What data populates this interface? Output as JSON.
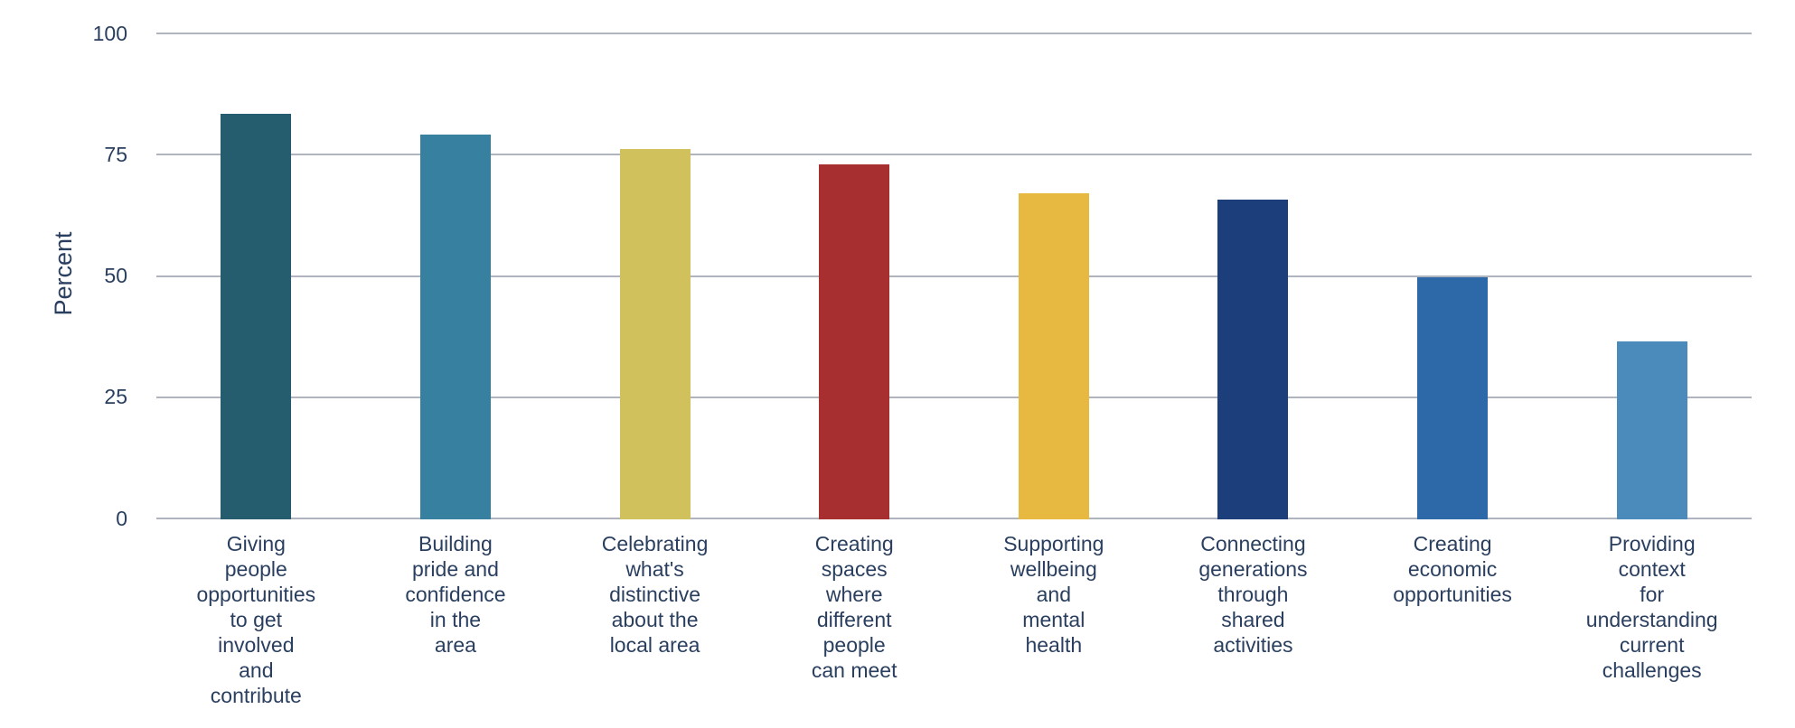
{
  "chart_data": {
    "type": "bar",
    "title": "",
    "xlabel": "",
    "ylabel": "Percent",
    "ylim": [
      0,
      100
    ],
    "yticks": [
      0,
      25,
      50,
      75,
      100
    ],
    "grid": true,
    "legend": false,
    "background_color": "#ffffff",
    "text_color": "#2a3f5f",
    "grid_color": "#b0b4bf",
    "categories": [
      "Giving\npeople\nopportunities\nto get\ninvolved\nand\ncontribute",
      "Building\npride and\nconfidence\nin the\narea",
      "Celebrating\nwhat's\ndistinctive\nabout the\nlocal area",
      "Creating\nspaces\nwhere\ndifferent\npeople\ncan meet",
      "Supporting\nwellbeing\nand\nmental\nhealth",
      "Connecting\ngenerations\nthrough\nshared\nactivities",
      "Creating\neconomic\nopportunities",
      "Providing\ncontext\nfor\nunderstanding\ncurrent\nchallenges"
    ],
    "values": [
      83.4,
      79,
      76,
      73,
      67,
      65.6,
      49.6,
      36.5
    ],
    "bar_colors": [
      "#255c6e",
      "#3780a0",
      "#d0c15c",
      "#a82f2f",
      "#e7b940",
      "#1c3e7a",
      "#2d68a9",
      "#4a8bbc"
    ]
  }
}
